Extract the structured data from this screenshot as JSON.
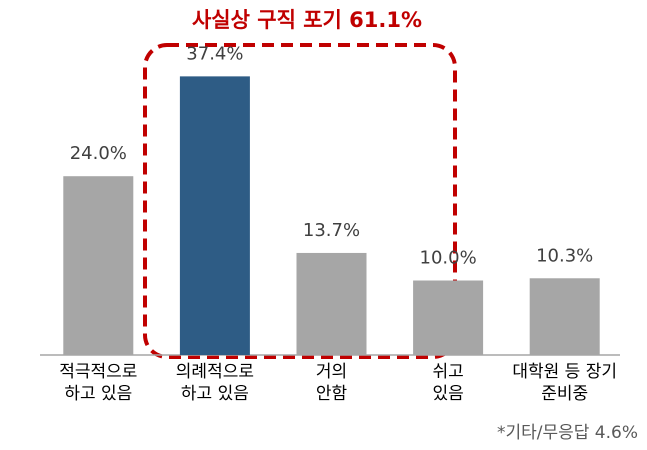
{
  "chart_data": {
    "type": "bar",
    "annotation": "사실상 구직 포기 61.1%",
    "footnote": "*기타/무응답 4.6%",
    "categories": [
      [
        "적극적으로",
        "하고 있음"
      ],
      [
        "의례적으로",
        "하고 있음"
      ],
      [
        "거의",
        "안함"
      ],
      [
        "쉬고",
        "있음"
      ],
      [
        "대학원 등 장기",
        "준비중"
      ]
    ],
    "values": [
      24.0,
      37.4,
      13.7,
      10.0,
      10.3
    ],
    "value_labels": [
      "24.0%",
      "37.4%",
      "13.7%",
      "10.0%",
      "10.3%"
    ],
    "colors": [
      "#a6a6a6",
      "#2e5c85",
      "#a6a6a6",
      "#a6a6a6",
      "#a6a6a6"
    ],
    "ylim": [
      0,
      40
    ]
  }
}
